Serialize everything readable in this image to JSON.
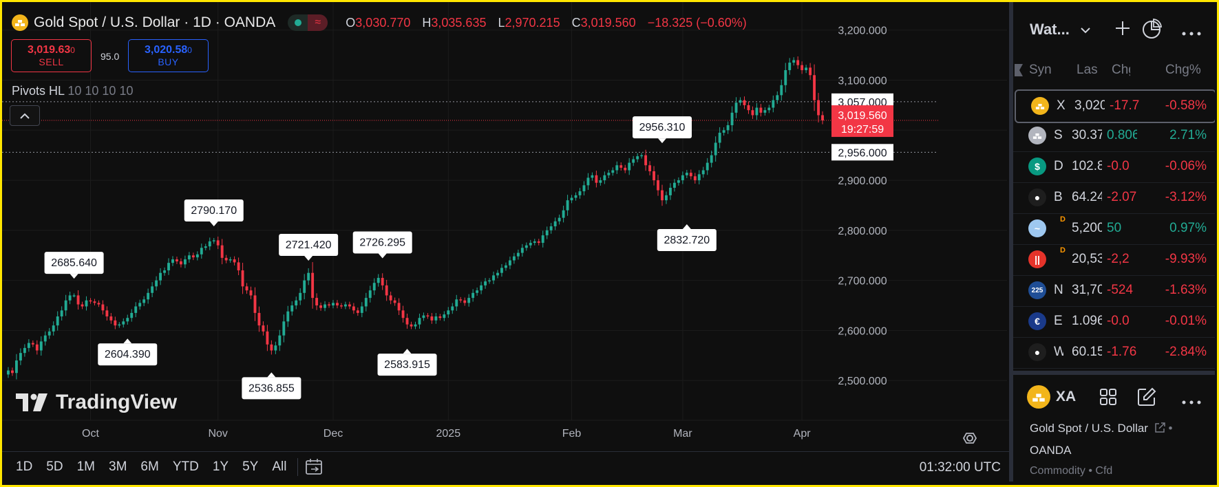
{
  "header": {
    "symbol_title": "Gold Spot / U.S. Dollar · 1D · OANDA",
    "ohlc": [
      {
        "key": "O",
        "value": "3,030.770"
      },
      {
        "key": "H",
        "value": "3,035.635"
      },
      {
        "key": "L",
        "value": "2,970.215"
      },
      {
        "key": "C",
        "value": "3,019.560"
      }
    ],
    "change": "−18.325 (−0.60%)"
  },
  "trade": {
    "sell_price": "3,019.63",
    "sell_price_small": "0",
    "sell_label": "SELL",
    "spread": "95.0",
    "buy_price": "3,020.58",
    "buy_price_small": "0",
    "buy_label": "BUY"
  },
  "indicator": {
    "name": "Pivots HL",
    "params": "10 10 10 10"
  },
  "brand": {
    "name": "TradingView"
  },
  "price_axis": {
    "ticks": [
      "3,200.000",
      "3,100.000",
      "3,000.000",
      "2,900.000",
      "2,800.000",
      "2,700.000",
      "2,600.000",
      "2,500.000"
    ],
    "tick_values": [
      3200,
      3100,
      3000,
      2900,
      2800,
      2700,
      2600,
      2500
    ],
    "tag_upper": "3,057.000",
    "tag_current": "3,019.560",
    "tag_countdown": "19:27:59",
    "tag_lower": "2,956.000"
  },
  "time_axis": {
    "labels": [
      {
        "text": "Oct",
        "bar": 20
      },
      {
        "text": "Nov",
        "bar": 51
      },
      {
        "text": "Dec",
        "bar": 79
      },
      {
        "text": "2025",
        "bar": 107
      },
      {
        "text": "Feb",
        "bar": 137
      },
      {
        "text": "Mar",
        "bar": 164
      },
      {
        "text": "Apr",
        "bar": 193
      }
    ]
  },
  "timeframes": [
    "1D",
    "5D",
    "1M",
    "3M",
    "6M",
    "YTD",
    "1Y",
    "5Y",
    "All"
  ],
  "clock": "01:32:00 UTC",
  "colors": {
    "up": "#22ab94",
    "down": "#f23645",
    "background": "#0f0f0f",
    "grid": "#1c1c1c"
  },
  "chart_data": {
    "type": "candlestick",
    "title": "Gold Spot / U.S. Dollar · 1D · OANDA",
    "ylim": [
      2470,
      3245
    ],
    "pivots": [
      {
        "label": "2685.640",
        "value": 2685.64,
        "bar": 16,
        "kind": "high"
      },
      {
        "label": "2604.390",
        "value": 2604.39,
        "bar": 29,
        "kind": "low"
      },
      {
        "label": "2790.170",
        "value": 2790.17,
        "bar": 50,
        "kind": "high"
      },
      {
        "label": "2536.855",
        "value": 2536.855,
        "bar": 64,
        "kind": "low"
      },
      {
        "label": "2721.420",
        "value": 2721.42,
        "bar": 73,
        "kind": "high"
      },
      {
        "label": "2726.295",
        "value": 2726.295,
        "bar": 91,
        "kind": "high"
      },
      {
        "label": "2583.915",
        "value": 2583.915,
        "bar": 97,
        "kind": "low"
      },
      {
        "label": "2956.310",
        "value": 2956.31,
        "bar": 159,
        "kind": "high"
      },
      {
        "label": "2832.720",
        "value": 2832.72,
        "bar": 165,
        "kind": "low"
      }
    ],
    "closes": [
      2520,
      2515,
      2540,
      2555,
      2565,
      2575,
      2572,
      2560,
      2578,
      2590,
      2598,
      2610,
      2628,
      2640,
      2660,
      2670,
      2670,
      2652,
      2648,
      2660,
      2658,
      2655,
      2652,
      2640,
      2628,
      2620,
      2610,
      2612,
      2618,
      2625,
      2635,
      2648,
      2655,
      2662,
      2675,
      2688,
      2700,
      2715,
      2720,
      2735,
      2742,
      2738,
      2732,
      2742,
      2750,
      2746,
      2752,
      2765,
      2768,
      2778,
      2780,
      2770,
      2745,
      2740,
      2742,
      2736,
      2720,
      2688,
      2680,
      2670,
      2635,
      2610,
      2598,
      2572,
      2560,
      2570,
      2590,
      2618,
      2638,
      2650,
      2660,
      2675,
      2700,
      2715,
      2665,
      2650,
      2645,
      2652,
      2650,
      2655,
      2650,
      2648,
      2652,
      2648,
      2640,
      2635,
      2648,
      2665,
      2680,
      2695,
      2705,
      2690,
      2670,
      2660,
      2655,
      2640,
      2625,
      2612,
      2608,
      2612,
      2625,
      2630,
      2628,
      2620,
      2628,
      2625,
      2632,
      2640,
      2648,
      2662,
      2660,
      2655,
      2665,
      2675,
      2680,
      2690,
      2698,
      2700,
      2710,
      2715,
      2725,
      2730,
      2740,
      2748,
      2755,
      2765,
      2770,
      2775,
      2778,
      2775,
      2790,
      2800,
      2808,
      2818,
      2825,
      2840,
      2860,
      2865,
      2870,
      2878,
      2890,
      2905,
      2910,
      2895,
      2900,
      2910,
      2915,
      2920,
      2930,
      2925,
      2920,
      2935,
      2942,
      2948,
      2950,
      2930,
      2918,
      2900,
      2880,
      2860,
      2870,
      2885,
      2895,
      2900,
      2910,
      2915,
      2908,
      2900,
      2912,
      2920,
      2935,
      2950,
      2975,
      2995,
      3000,
      3010,
      3035,
      3055,
      3060,
      3050,
      3040,
      3030,
      3045,
      3035,
      3040,
      3045,
      3060,
      3070,
      3090,
      3120,
      3135,
      3140,
      3130,
      3120,
      3125,
      3110,
      3060,
      3030,
      3019.56
    ],
    "last_price": 3019.56
  },
  "watchlist": {
    "title": "Wat...",
    "columns": [
      "Syn",
      "Las",
      "Chg",
      "Chg%"
    ],
    "rows": [
      {
        "sym": "X",
        "last": "3,020",
        "chg": "-17.7",
        "pct": "-0.58%",
        "dir": "neg",
        "icon": "gold-icon",
        "color": "#f2b51b",
        "glyph": "",
        "badge": ""
      },
      {
        "sym": "SI",
        "last": "30.37",
        "chg": "0.806",
        "pct": "2.71%",
        "dir": "pos",
        "icon": "silver-icon",
        "color": "#b2b5be",
        "glyph": "",
        "badge": ""
      },
      {
        "sym": "D",
        "last": "102.8",
        "chg": "-0.0",
        "pct": "-0.06%",
        "dir": "neg",
        "icon": "dollar-icon",
        "color": "#089981",
        "glyph": "$",
        "badge": ""
      },
      {
        "sym": "B",
        "last": "64.24",
        "chg": "-2.07",
        "pct": "-3.12%",
        "dir": "neg",
        "icon": "oil-drop-icon",
        "color": "#1e1e1e",
        "glyph": "●",
        "badge": ""
      },
      {
        "sym": "",
        "last": "5,200",
        "chg": "50",
        "pct": "0.97%",
        "dir": "pos",
        "icon": "wave-icon",
        "color": "#9ec8f0",
        "glyph": "~",
        "badge": "D"
      },
      {
        "sym": "",
        "last": "20,53",
        "chg": "-2,2",
        "pct": "-9.93%",
        "dir": "neg",
        "icon": "index-hk-icon",
        "color": "#e5332a",
        "glyph": "||",
        "badge": "D"
      },
      {
        "sym": "N",
        "last": "31,70",
        "chg": "-524",
        "pct": "-1.63%",
        "dir": "neg",
        "icon": "nikkei-225-icon",
        "color": "#1f4e96",
        "glyph": "225",
        "badge": ""
      },
      {
        "sym": "E",
        "last": "1.096",
        "chg": "-0.0",
        "pct": "-0.01%",
        "dir": "neg",
        "icon": "eur-usd-flag-icon",
        "color": "#1a3a8a",
        "glyph": "€",
        "badge": ""
      },
      {
        "sym": "W",
        "last": "60.15",
        "chg": "-1.76",
        "pct": "-2.84%",
        "dir": "neg",
        "icon": "oil-drop-icon",
        "color": "#1e1e1e",
        "glyph": "●",
        "badge": ""
      }
    ]
  },
  "symbol_panel": {
    "ticker": "XA",
    "name": "Gold Spot / U.S. Dollar",
    "exchange": "OANDA",
    "type": "Commodity • Cfd"
  }
}
